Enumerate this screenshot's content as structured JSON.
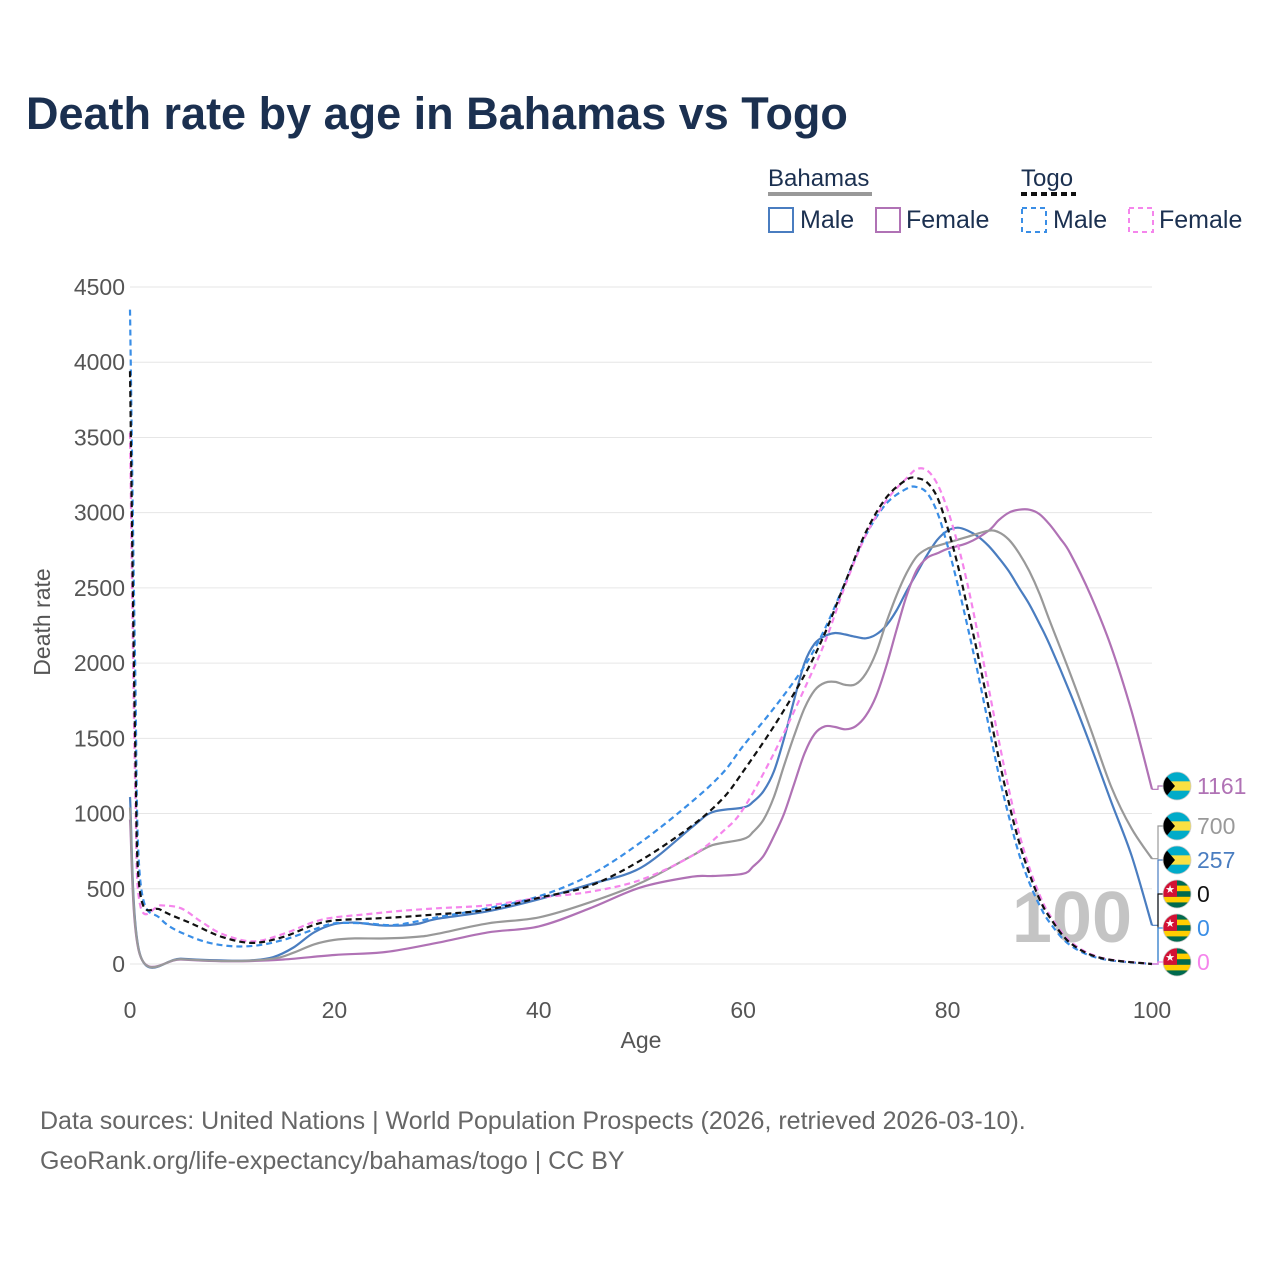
{
  "title": "Death rate by age in Bahamas vs Togo",
  "footer": {
    "source": "Data sources: United Nations | World Population Prospects (2026, retrieved 2026-03-10).",
    "link": "GeoRank.org/life-expectancy/bahamas/togo | CC BY"
  },
  "colors": {
    "male": "#4a7dc0",
    "female": "#b072b5",
    "total": "#999999",
    "togo_male": "#3a8ee6",
    "togo_female": "#f585ec",
    "togo_total": "#111111",
    "grid": "#e6e6e6",
    "axis_text": "#555555"
  },
  "legend": {
    "groups": [
      {
        "name": "Bahamas",
        "style": "solid",
        "items": [
          "Male",
          "Female"
        ]
      },
      {
        "name": "Togo",
        "style": "dashed",
        "items": [
          "Male",
          "Female"
        ]
      }
    ]
  },
  "watermark": "100",
  "end_labels": [
    {
      "country": "Bahamas",
      "flag": "bahamas-flag-icon",
      "value": "1161",
      "series": "Bahamas Female"
    },
    {
      "country": "Bahamas",
      "flag": "bahamas-flag-icon",
      "value": "700",
      "series": "Bahamas Total"
    },
    {
      "country": "Bahamas",
      "flag": "bahamas-flag-icon",
      "value": "257",
      "series": "Bahamas Male"
    },
    {
      "country": "Togo",
      "flag": "togo-flag-icon",
      "value": "0",
      "series": "Togo Total"
    },
    {
      "country": "Togo",
      "flag": "togo-flag-icon",
      "value": "0",
      "series": "Togo Male"
    },
    {
      "country": "Togo",
      "flag": "togo-flag-icon",
      "value": "0",
      "series": "Togo Female"
    }
  ],
  "chart_data": {
    "type": "line",
    "title": "Death rate by age in Bahamas vs Togo",
    "xlabel": "Age",
    "ylabel": "Death rate",
    "xlim": [
      0,
      100
    ],
    "ylim": [
      0,
      4500
    ],
    "xticks": [
      0,
      20,
      40,
      60,
      80,
      100
    ],
    "yticks": [
      0,
      500,
      1000,
      1500,
      2000,
      2500,
      3000,
      3500,
      4000,
      4500
    ],
    "grid": true,
    "series": [
      {
        "name": "Bahamas Male",
        "color": "#4a7dc0",
        "dash": false,
        "x": [
          0,
          1,
          5,
          10,
          12,
          14,
          16,
          18,
          20,
          22,
          25,
          28,
          30,
          35,
          40,
          45,
          50,
          55,
          57,
          60,
          61,
          62,
          63,
          64,
          65,
          66,
          67,
          68,
          69,
          70,
          71,
          72,
          73,
          74,
          75,
          76,
          77,
          78,
          79,
          80,
          81,
          82,
          83,
          84,
          85,
          86,
          87,
          88,
          89,
          90,
          92,
          94,
          96,
          98,
          100
        ],
        "y": [
          1110,
          60,
          35,
          22,
          25,
          45,
          110,
          210,
          265,
          275,
          255,
          265,
          300,
          350,
          430,
          530,
          640,
          910,
          1010,
          1040,
          1080,
          1150,
          1280,
          1500,
          1760,
          2000,
          2130,
          2180,
          2200,
          2190,
          2175,
          2165,
          2190,
          2250,
          2350,
          2480,
          2600,
          2720,
          2820,
          2880,
          2900,
          2880,
          2840,
          2780,
          2700,
          2610,
          2500,
          2390,
          2260,
          2120,
          1800,
          1450,
          1080,
          720,
          257
        ]
      },
      {
        "name": "Bahamas Female",
        "color": "#b072b5",
        "dash": false,
        "x": [
          0,
          1,
          5,
          10,
          15,
          20,
          25,
          30,
          35,
          40,
          45,
          50,
          55,
          57,
          60,
          61,
          62,
          63,
          64,
          65,
          66,
          67,
          68,
          69,
          70,
          71,
          72,
          73,
          74,
          75,
          76,
          77,
          78,
          79,
          80,
          82,
          84,
          85,
          86,
          87,
          88,
          89,
          90,
          91,
          92,
          94,
          96,
          98,
          100
        ],
        "y": [
          960,
          55,
          30,
          18,
          30,
          60,
          80,
          140,
          210,
          250,
          370,
          510,
          580,
          585,
          600,
          650,
          720,
          850,
          1000,
          1200,
          1400,
          1530,
          1580,
          1575,
          1560,
          1580,
          1650,
          1780,
          1980,
          2220,
          2450,
          2620,
          2700,
          2730,
          2760,
          2800,
          2880,
          2950,
          3000,
          3020,
          3020,
          2990,
          2920,
          2830,
          2730,
          2450,
          2110,
          1680,
          1161
        ]
      },
      {
        "name": "Bahamas Total",
        "color": "#999999",
        "dash": false,
        "x": [
          0,
          1,
          5,
          10,
          14,
          16,
          18,
          20,
          22,
          25,
          28,
          30,
          35,
          40,
          45,
          50,
          55,
          57,
          60,
          61,
          62,
          63,
          64,
          65,
          66,
          67,
          68,
          69,
          70,
          71,
          72,
          73,
          74,
          75,
          76,
          77,
          78,
          79,
          80,
          82,
          84,
          85,
          86,
          87,
          88,
          89,
          90,
          92,
          94,
          96,
          98,
          100
        ],
        "y": [
          1040,
          58,
          32,
          20,
          35,
          75,
          130,
          160,
          170,
          170,
          180,
          200,
          270,
          310,
          410,
          540,
          720,
          790,
          830,
          880,
          960,
          1110,
          1320,
          1520,
          1700,
          1820,
          1870,
          1875,
          1855,
          1860,
          1930,
          2070,
          2270,
          2450,
          2600,
          2710,
          2760,
          2780,
          2800,
          2840,
          2880,
          2870,
          2820,
          2730,
          2610,
          2460,
          2280,
          1930,
          1560,
          1180,
          900,
          700
        ]
      },
      {
        "name": "Togo Male",
        "color": "#3a8ee6",
        "dash": true,
        "x": [
          0,
          0.5,
          1,
          3,
          6,
          9,
          12,
          15,
          18,
          20,
          23,
          26,
          30,
          35,
          40,
          45,
          50,
          55,
          58,
          60,
          63,
          66,
          68,
          70,
          72,
          74,
          76,
          77,
          78,
          79,
          80,
          81,
          82,
          83,
          84,
          85,
          86,
          87,
          88,
          89,
          90,
          92,
          95,
          100
        ],
        "y": [
          4350,
          2000,
          560,
          300,
          180,
          125,
          120,
          160,
          230,
          270,
          270,
          260,
          310,
          370,
          450,
          590,
          810,
          1080,
          1270,
          1450,
          1700,
          1980,
          2230,
          2540,
          2850,
          3060,
          3160,
          3170,
          3130,
          3000,
          2780,
          2520,
          2230,
          1920,
          1590,
          1260,
          980,
          730,
          540,
          390,
          275,
          125,
          35,
          0
        ]
      },
      {
        "name": "Togo Female",
        "color": "#f585ec",
        "dash": true,
        "x": [
          0,
          0.5,
          1,
          3,
          5,
          7,
          9,
          12,
          15,
          18,
          20,
          23,
          26,
          30,
          35,
          40,
          45,
          50,
          55,
          58,
          60,
          63,
          66,
          68,
          70,
          72,
          74,
          76,
          77,
          78,
          79,
          80,
          81,
          82,
          83,
          84,
          85,
          86,
          87,
          88,
          89,
          90,
          92,
          95,
          100
        ],
        "y": [
          3530,
          1200,
          390,
          390,
          370,
          280,
          200,
          150,
          200,
          280,
          310,
          330,
          350,
          370,
          390,
          440,
          480,
          560,
          720,
          880,
          1030,
          1400,
          1830,
          2140,
          2520,
          2850,
          3080,
          3230,
          3290,
          3280,
          3190,
          3020,
          2790,
          2510,
          2180,
          1840,
          1490,
          1160,
          870,
          640,
          460,
          325,
          150,
          42,
          0
        ]
      },
      {
        "name": "Togo Total",
        "color": "#111111",
        "dash": true,
        "x": [
          0,
          0.5,
          1,
          3,
          6,
          9,
          12,
          15,
          18,
          20,
          23,
          26,
          30,
          35,
          40,
          45,
          50,
          55,
          58,
          60,
          63,
          66,
          68,
          70,
          72,
          74,
          76,
          77,
          78,
          79,
          80,
          81,
          82,
          83,
          84,
          85,
          86,
          87,
          88,
          89,
          90,
          92,
          95,
          100
        ],
        "y": [
          3940,
          1500,
          470,
          360,
          270,
          180,
          140,
          180,
          260,
          290,
          300,
          310,
          330,
          360,
          440,
          520,
          690,
          920,
          1100,
          1280,
          1580,
          1920,
          2200,
          2540,
          2870,
          3100,
          3220,
          3230,
          3200,
          3100,
          2900,
          2650,
          2350,
          2040,
          1710,
          1370,
          1070,
          810,
          600,
          430,
          310,
          140,
          40,
          0
        ]
      }
    ]
  }
}
